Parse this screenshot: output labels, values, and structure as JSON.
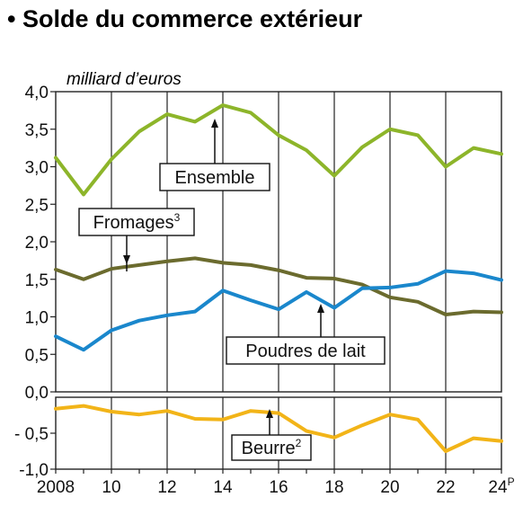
{
  "chart_data": {
    "type": "line",
    "title": "• Solde du commerce extérieur",
    "ylabel": "milliard d’euros",
    "xlabel": "",
    "ylim": [
      -1.0,
      4.0
    ],
    "grid": true,
    "x": [
      2008,
      2009,
      2010,
      2011,
      2012,
      2013,
      2014,
      2015,
      2016,
      2017,
      2018,
      2019,
      2020,
      2021,
      2022,
      2023,
      2024
    ],
    "x_ticks": [
      {
        "value": 2008,
        "label": "2008"
      },
      {
        "value": 2010,
        "label": "10"
      },
      {
        "value": 2012,
        "label": "12"
      },
      {
        "value": 2014,
        "label": "14"
      },
      {
        "value": 2016,
        "label": "16"
      },
      {
        "value": 2018,
        "label": "18"
      },
      {
        "value": 2020,
        "label": "20"
      },
      {
        "value": 2022,
        "label": "22"
      },
      {
        "value": 2024,
        "label": "24",
        "sup": "P"
      }
    ],
    "y_ticks": [
      {
        "value": 4.0,
        "label": "4,0"
      },
      {
        "value": 3.5,
        "label": "3,5"
      },
      {
        "value": 3.0,
        "label": "3,0"
      },
      {
        "value": 2.5,
        "label": "2,5"
      },
      {
        "value": 2.0,
        "label": "2,0"
      },
      {
        "value": 1.5,
        "label": "1,5"
      },
      {
        "value": 1.0,
        "label": "1,0"
      },
      {
        "value": 0.5,
        "label": "0,5"
      },
      {
        "value": 0.0,
        "label": "0,0"
      },
      {
        "value": -0.5,
        "label": "- 0,5"
      },
      {
        "value": -1.0,
        "label": "-1,0"
      }
    ],
    "series": [
      {
        "name": "Ensemble",
        "sup": "",
        "color": "#8db52a",
        "values": [
          3.12,
          2.63,
          3.1,
          3.47,
          3.7,
          3.6,
          3.82,
          3.72,
          3.42,
          3.22,
          2.88,
          3.26,
          3.5,
          3.42,
          3.0,
          3.25,
          3.17
        ]
      },
      {
        "name": "Fromages",
        "sup": "3",
        "color": "#6b6b2e",
        "values": [
          1.63,
          1.5,
          1.64,
          1.69,
          1.74,
          1.78,
          1.72,
          1.69,
          1.62,
          1.52,
          1.51,
          1.43,
          1.26,
          1.2,
          1.03,
          1.07,
          1.06
        ]
      },
      {
        "name": "Poudres de lait",
        "sup": "",
        "color": "#1a87cc",
        "values": [
          0.74,
          0.56,
          0.82,
          0.95,
          1.02,
          1.07,
          1.35,
          1.22,
          1.1,
          1.33,
          1.12,
          1.38,
          1.39,
          1.44,
          1.61,
          1.58,
          1.49
        ]
      },
      {
        "name": "Beurre",
        "sup": "2",
        "color": "#f2b418",
        "values": [
          -0.16,
          -0.12,
          -0.2,
          -0.24,
          -0.19,
          -0.3,
          -0.31,
          -0.19,
          -0.22,
          -0.47,
          -0.56,
          -0.39,
          -0.24,
          -0.31,
          -0.75,
          -0.57,
          -0.61
        ]
      }
    ]
  }
}
